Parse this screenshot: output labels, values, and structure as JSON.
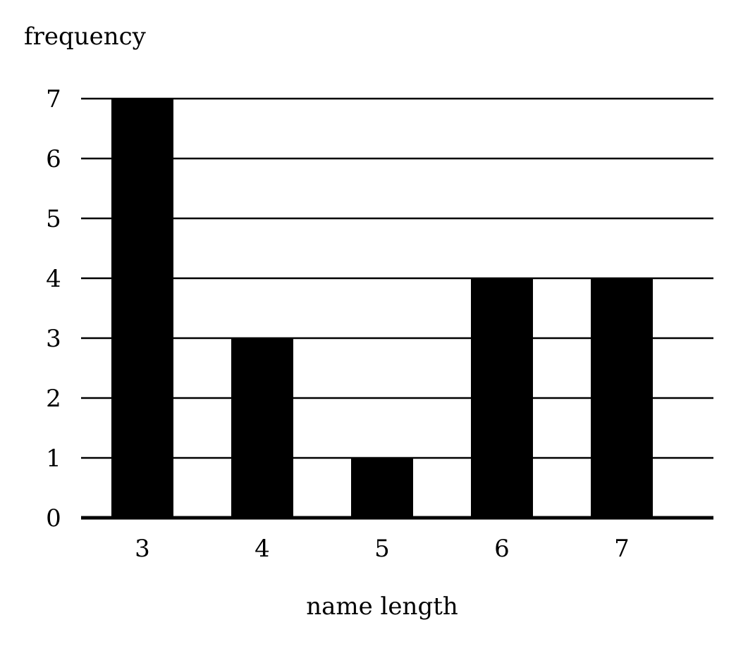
{
  "chart_data": {
    "type": "bar",
    "ylabel": "frequency",
    "xlabel": "name length",
    "categories": [
      "3",
      "4",
      "5",
      "6",
      "7"
    ],
    "values": [
      7,
      3,
      1,
      4,
      4
    ],
    "ylim": [
      0,
      7
    ],
    "yticks": [
      "0",
      "1",
      "2",
      "3",
      "4",
      "5",
      "6",
      "7"
    ],
    "grid": true,
    "legend": "none",
    "bar_color": "#000000",
    "grid_color": "#000000"
  }
}
